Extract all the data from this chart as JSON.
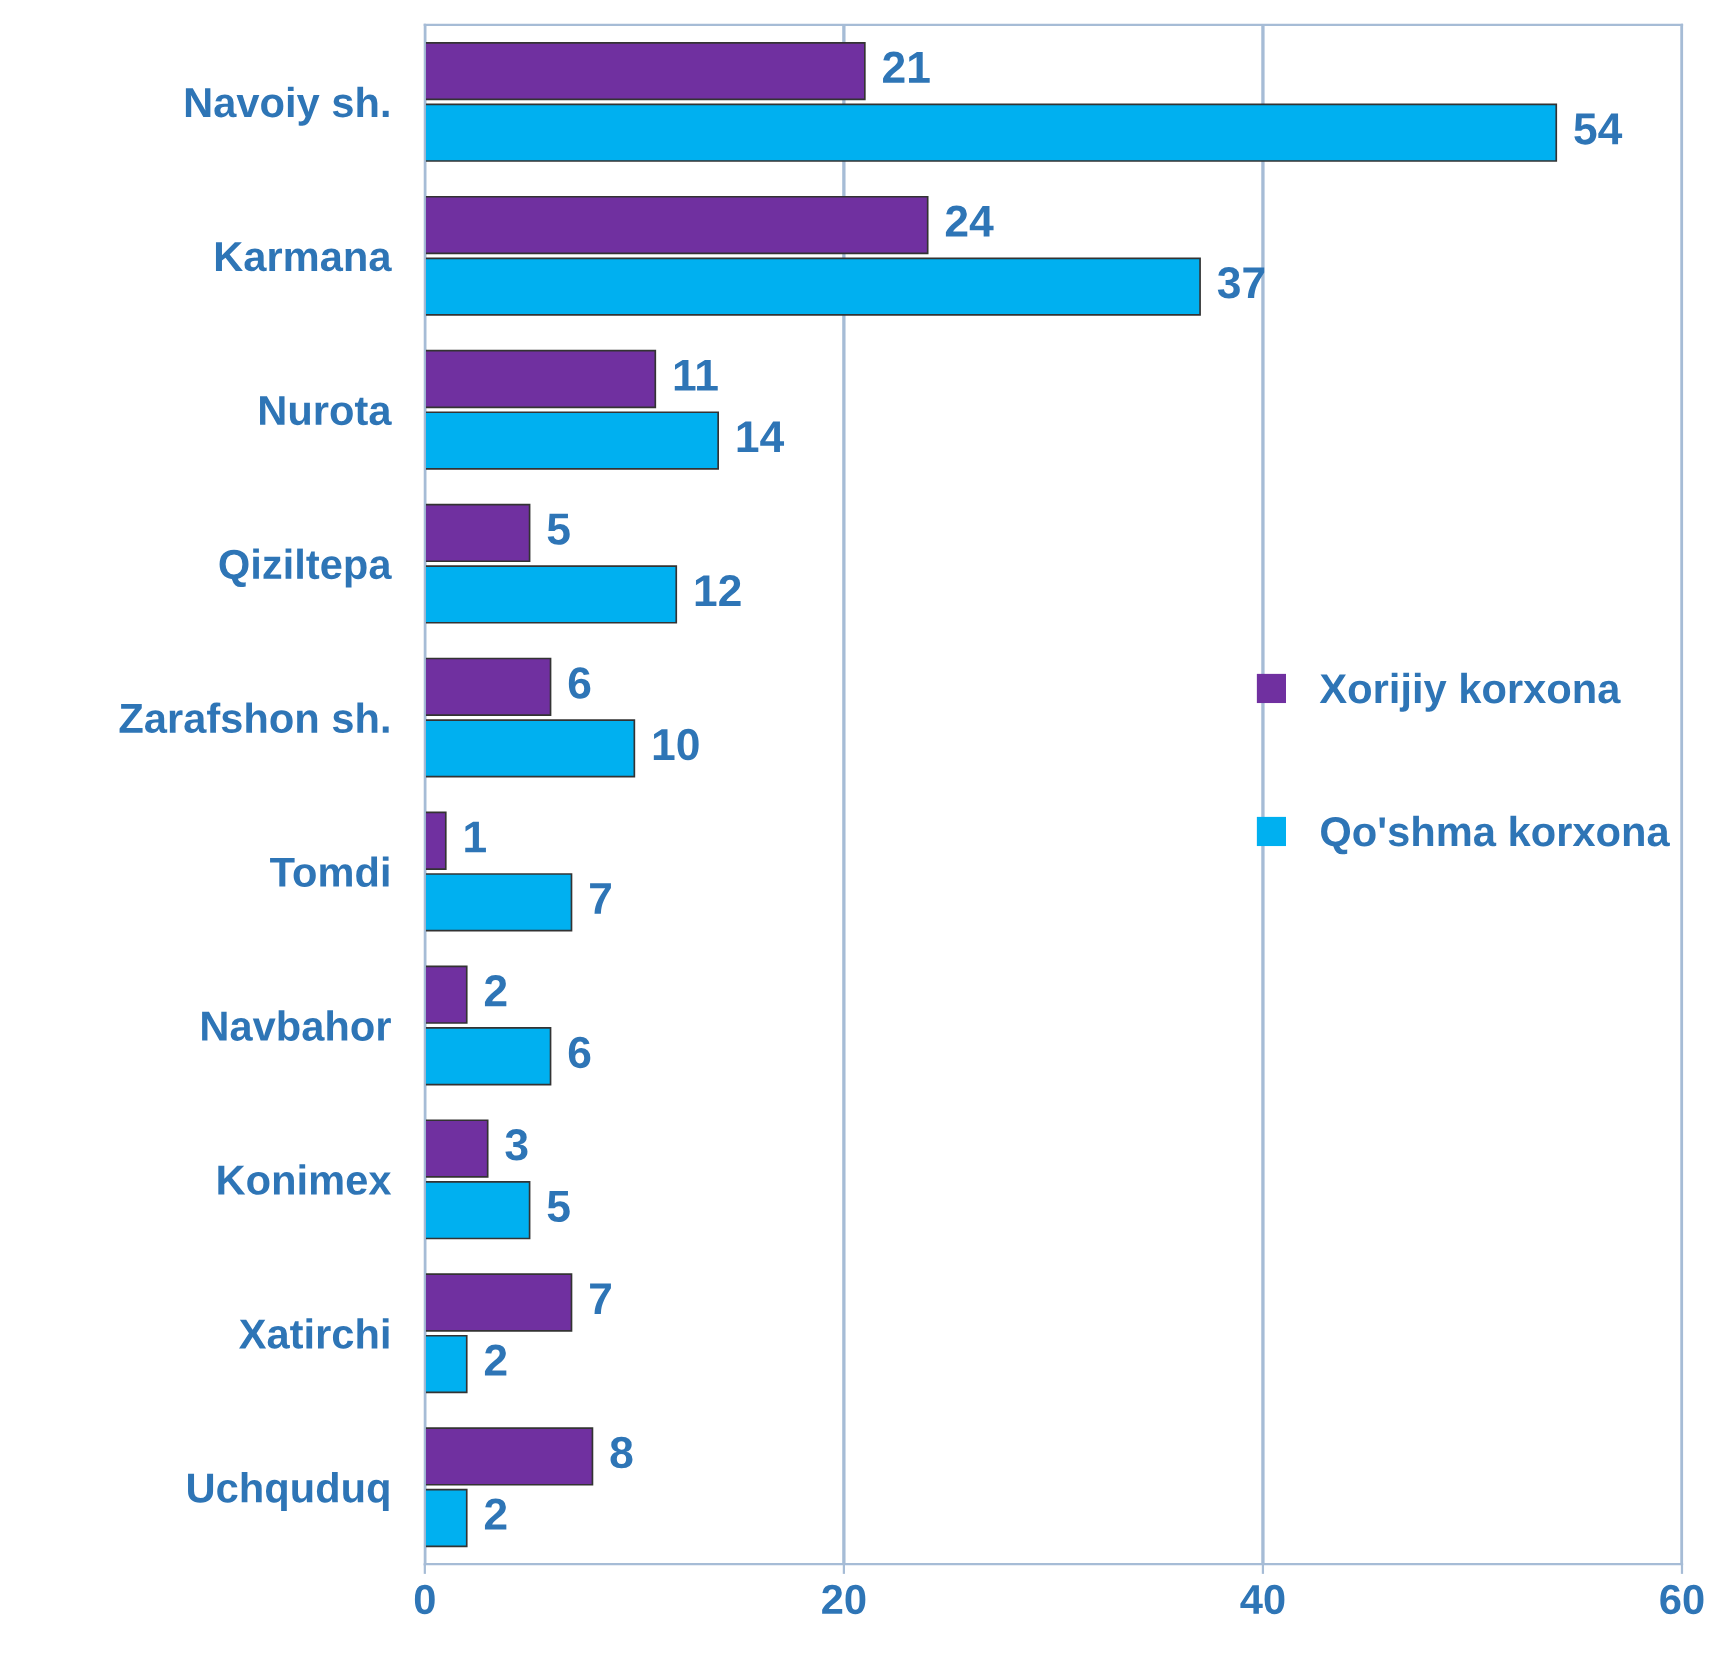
{
  "chart_data": {
    "type": "bar",
    "orientation": "horizontal",
    "categories": [
      "Navoiy sh.",
      "Karmana",
      "Nurota",
      "Qiziltepa",
      "Zarafshon sh.",
      "Tomdi",
      "Navbahor",
      "Konimex",
      "Xatirchi",
      "Uchquduq"
    ],
    "series": [
      {
        "name": "Xorijiy korxona",
        "color": "#7030a0",
        "values": [
          21,
          24,
          11,
          5,
          6,
          1,
          2,
          3,
          7,
          8
        ]
      },
      {
        "name": "Qo'shma korxona",
        "color": "#00b0f0",
        "values": [
          54,
          37,
          14,
          12,
          10,
          7,
          6,
          5,
          2,
          2
        ]
      }
    ],
    "xlim": [
      0,
      60
    ],
    "xticks": [
      0,
      20,
      40,
      60
    ],
    "grid": "x",
    "legend": "right",
    "data_labels": true
  }
}
